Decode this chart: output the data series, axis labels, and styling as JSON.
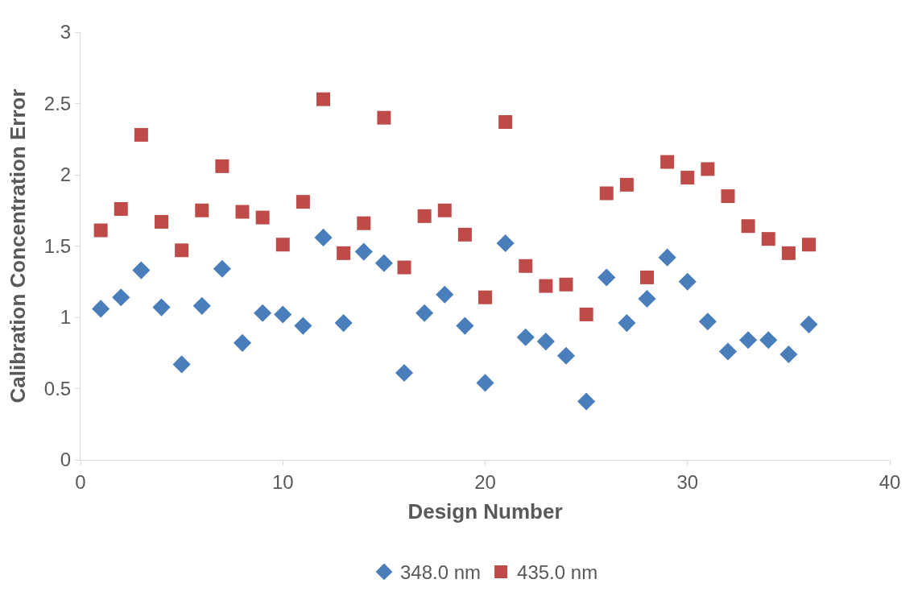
{
  "chart_data": {
    "type": "scatter",
    "xlabel": "Design Number",
    "ylabel": "Calibration Concentration Error",
    "x": [
      1,
      2,
      3,
      4,
      5,
      6,
      7,
      8,
      9,
      10,
      11,
      12,
      13,
      14,
      15,
      16,
      17,
      18,
      19,
      20,
      21,
      22,
      23,
      24,
      25,
      26,
      27,
      28,
      29,
      30,
      31,
      32,
      33,
      34,
      35,
      36
    ],
    "series": [
      {
        "name": "348.0 nm",
        "color": "#4a7ebb",
        "marker": "diamond",
        "values": [
          1.06,
          1.14,
          1.33,
          1.07,
          0.67,
          1.08,
          1.34,
          0.82,
          1.03,
          1.02,
          0.94,
          1.56,
          0.96,
          1.46,
          1.38,
          0.61,
          1.03,
          1.16,
          0.94,
          0.54,
          1.52,
          0.86,
          0.83,
          0.73,
          0.41,
          1.28,
          0.96,
          1.13,
          1.42,
          1.25,
          0.97,
          0.76,
          0.84,
          0.84,
          0.74,
          0.95
        ]
      },
      {
        "name": "435.0 nm",
        "color": "#be4b48",
        "marker": "square",
        "values": [
          1.61,
          1.76,
          2.28,
          1.67,
          1.47,
          1.75,
          2.06,
          1.74,
          1.7,
          1.51,
          1.81,
          2.53,
          1.45,
          1.66,
          2.4,
          1.35,
          1.71,
          1.75,
          1.58,
          1.14,
          2.37,
          1.36,
          1.22,
          1.23,
          1.02,
          1.87,
          1.93,
          1.28,
          2.09,
          1.98,
          2.04,
          1.85,
          1.64,
          1.55,
          1.45,
          1.51
        ]
      }
    ],
    "xlim": [
      0,
      40
    ],
    "xticks": [
      0,
      10,
      20,
      30,
      40
    ],
    "ylim": [
      0,
      3
    ],
    "yticks": [
      0,
      0.5,
      1,
      1.5,
      2,
      2.5,
      3
    ],
    "grid": false,
    "legend": "bottom"
  }
}
